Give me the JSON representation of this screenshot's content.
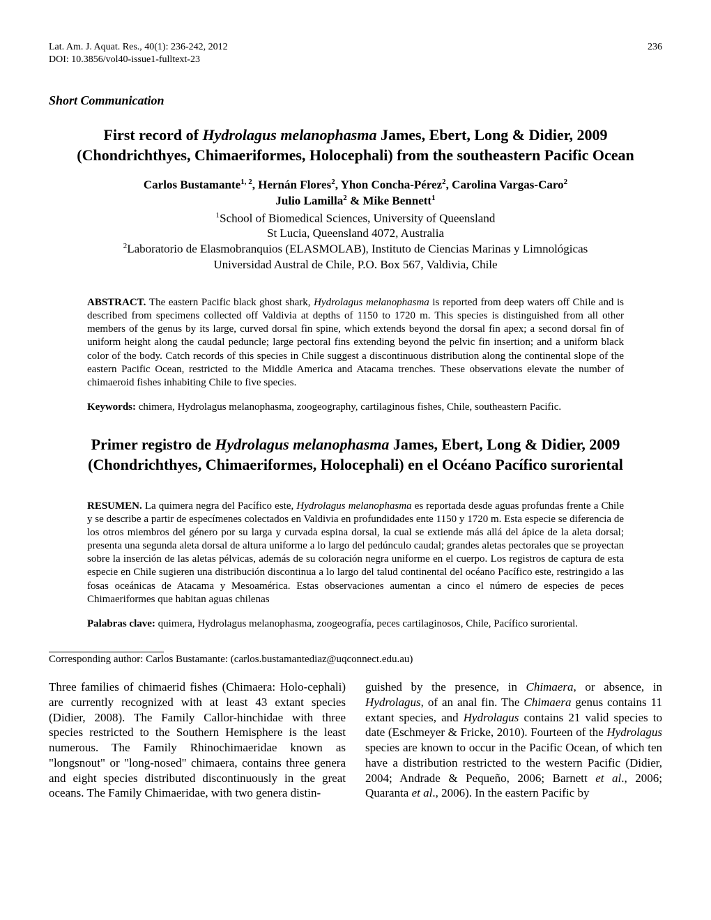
{
  "header": {
    "journal": "Lat. Am. J. Aquat. Res., 40(1): 236-242, 2012",
    "page_number": "236",
    "doi": "DOI: 10.3856/vol40-issue1-fulltext-23"
  },
  "short_communication": "Short Communication",
  "title_pre": "First record of ",
  "title_species": "Hydrolagus melanophasma",
  "title_post": " James, Ebert, Long & Didier, 2009 (Chondrichthyes, Chimaeriformes, Holocephali) from the southeastern Pacific Ocean",
  "authors_line1": "Carlos Bustamante",
  "authors_sup1": "1, 2",
  "authors_line1b": ", Hernán Flores",
  "authors_sup2": "2",
  "authors_line1c": ", Yhon Concha-Pérez",
  "authors_sup3": "2",
  "authors_line1d": ", Carolina Vargas-Caro",
  "authors_sup4": "2",
  "authors_line2a": "Julio Lamilla",
  "authors_sup5": "2",
  "authors_line2b": " & Mike Bennett",
  "authors_sup6": "1",
  "affil1_sup": "1",
  "affil1": "School of Biomedical Sciences, University of Queensland",
  "affil1b": "St Lucia, Queensland 4072, Australia",
  "affil2_sup": "2",
  "affil2": "Laboratorio de Elasmobranquios (ELASMOLAB), Instituto de Ciencias Marinas y Limnológicas",
  "affil2b": "Universidad Austral de Chile, P.O. Box 567, Valdivia, Chile",
  "abstract_label": "ABSTRACT. ",
  "abstract_pre": "The eastern Pacific black ghost shark, ",
  "abstract_species": "Hydrolagus melanophasma",
  "abstract_body": " is reported from deep waters off Chile and is described from specimens collected off Valdivia at depths of 1150 to 1720 m. This species is distinguished from all other members of the genus by its large, curved dorsal fin spine, which extends beyond the dorsal fin apex; a second dorsal fin of uniform height along the caudal peduncle; large pectoral fins extending beyond the pelvic fin insertion; and a uniform black color of the body. Catch records of this species in Chile suggest a discontinuous distribution along the continental slope of the eastern Pacific Ocean, restricted to the Middle America and Atacama trenches. These observations elevate the number of chimaeroid fishes inhabiting Chile to five species.",
  "keywords_label": "Keywords: ",
  "keywords_pre": "chimera, ",
  "keywords_species": "Hydrolagus melanophasma,",
  "keywords_body": " zoogeography, cartilaginous fishes, Chile, southeastern Pacific.",
  "title2_pre": "Primer registro de ",
  "title2_species": "Hydrolagus melanophasma",
  "title2_post": " James, Ebert, Long & Didier, 2009 (Chondrichthyes, Chimaeriformes, Holocephali) en el Océano Pacífico suroriental",
  "resumen_label": "RESUMEN. ",
  "resumen_pre": "La quimera negra del Pacífico este, ",
  "resumen_species": "Hydrolagus melanophasma",
  "resumen_body": " es reportada desde aguas profundas frente a Chile y se describe a partir de especímenes colectados en Valdivia en profundidades ente 1150 y 1720 m. Esta especie se diferencia de los otros miembros del género por su larga y curvada espina dorsal, la cual se extiende más allá del ápice de la aleta dorsal; presenta una segunda aleta dorsal de altura uniforme a lo largo del pedúnculo caudal; grandes aletas pectorales que se proyectan sobre la inserción de las aletas pélvicas, además de su coloración negra uniforme en el cuerpo. Los registros de captura de esta especie en Chile sugieren una distribución discontinua a lo largo del talud continental del océano Pacífico este, restringido a las fosas oceánicas de Atacama y Mesoamérica. Estas observaciones aumentan a cinco el número de especies de peces Chimaeriformes que habitan aguas chilenas",
  "palabras_label": "Palabras clave: ",
  "palabras_pre": "quimera, ",
  "palabras_species": "Hydrolagus melanophasma",
  "palabras_body": ", zoogeografía, peces cartilaginosos, Chile, Pacífico suroriental.",
  "corresponding": "Corresponding author: Carlos Bustamante: (carlos.bustamantediaz@uqconnect.edu.au)",
  "col1_text": "Three families of chimaerid fishes (Chimaera: Holo-cephali) are currently recognized with at least 43 extant species (Didier, 2008). The Family Callor-hinchidae with three species restricted to the Southern Hemisphere is the least numerous. The Family Rhinochimaeridae known as \"longsnout\" or \"long-nosed\" chimaera, contains three genera and eight species distributed discontinuously in the great oceans. The Family Chimaeridae, with two genera distin-",
  "col2_a": "guished by the presence, in ",
  "col2_i1": "Chimaera",
  "col2_b": ", or absence, in ",
  "col2_i2": "Hydrolagus",
  "col2_c": ", of an anal fin. The ",
  "col2_i3": "Chimaera",
  "col2_d": " genus contains 11 extant species, and ",
  "col2_i4": "Hydrolagus",
  "col2_e": " contains 21 valid species to date (Eschmeyer & Fricke, 2010). Fourteen of the ",
  "col2_i5": "Hydrolagus",
  "col2_f": " species are known to occur in the Pacific Ocean, of which ten have a distribution restricted to the western Pacific (Didier, 2004; Andrade & Pequeño, 2006; Barnett ",
  "col2_i6": "et al",
  "col2_g": "., 2006; Quaranta ",
  "col2_i7": "et al",
  "col2_h": "., 2006). In the eastern Pacific by"
}
